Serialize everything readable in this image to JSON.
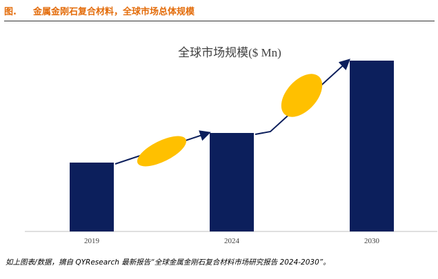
{
  "header": {
    "label": "图.",
    "title": "金属金刚石复合材料，全球市场总体规模"
  },
  "chart_data": {
    "type": "bar",
    "title": "全球市场规模($ Mn)",
    "categories": [
      "2019",
      "2024",
      "2030"
    ],
    "values": [
      100,
      143,
      248
    ],
    "ylim": [
      0,
      260
    ],
    "xlabel": "",
    "ylabel": "",
    "grid": false,
    "legend": "none"
  },
  "source": "如上图表/数据，摘自 QYResearch 最新报告“全球金属金刚石复合材料市场研究报告 2024-2030”。",
  "colors": {
    "header_text": "#e36c0a",
    "bar": "#0c1f5c",
    "arrow": "#0c1f5c",
    "ellipse": "#ffc000",
    "axis": "#bfbfbf"
  }
}
